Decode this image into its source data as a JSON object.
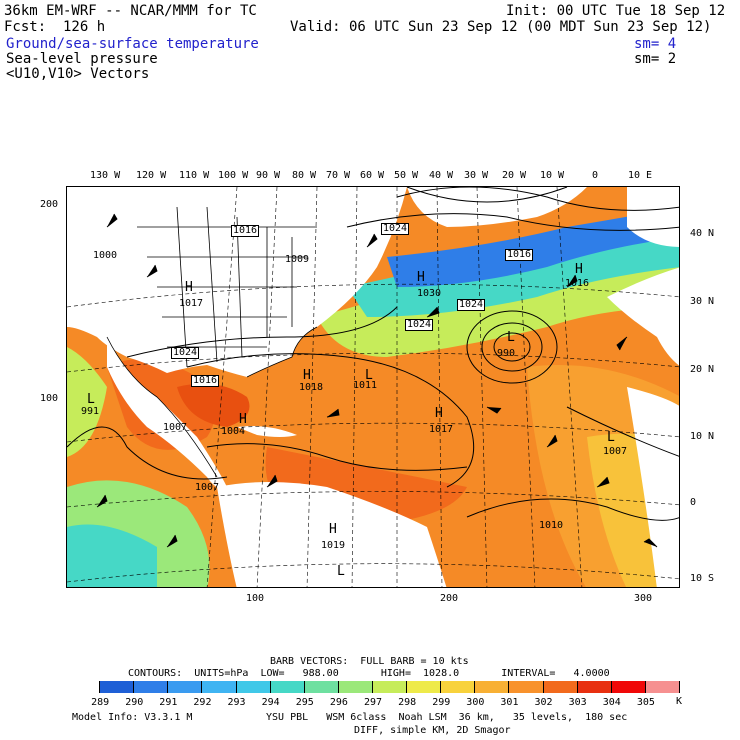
{
  "header": {
    "model": "36km EM-WRF -- NCAR/MMM for TC",
    "init": "Init: 00 UTC Tue 18 Sep 12",
    "fcst": "Fcst:  126 h",
    "valid": "Valid: 06 UTC Sun 23 Sep 12 (00 MDT Sun 23 Sep 12)",
    "field1": "Ground/sea-surface temperature",
    "field1_sm": "sm= 4",
    "field2": "Sea-level pressure",
    "field2_sm": "sm= 2",
    "field3": "<U10,V10> Vectors"
  },
  "axes": {
    "top_lon": [
      "130 W",
      "120 W",
      "110 W",
      "100 W",
      "90 W",
      "80 W",
      "70 W",
      "60 W",
      "50 W",
      "40 W",
      "30 W",
      "20 W",
      "10 W",
      "0",
      "10 E"
    ],
    "right_lat": [
      "40 N",
      "30 N",
      "20 N",
      "10 N",
      "0",
      "10 S"
    ],
    "left_grid": [
      "200",
      "100"
    ],
    "bottom_grid": [
      "100",
      "200",
      "300"
    ]
  },
  "pressure_labels": [
    {
      "text": "1016",
      "kind": "box"
    },
    {
      "text": "1024",
      "kind": "box"
    },
    {
      "text": "1009",
      "kind": "plain"
    },
    {
      "text": "1000",
      "kind": "plain"
    },
    {
      "text": "1017",
      "kind": "plain"
    },
    {
      "text": "1024",
      "kind": "box"
    },
    {
      "text": "1016",
      "kind": "box"
    },
    {
      "text": "1016",
      "kind": "box"
    },
    {
      "text": "1018",
      "kind": "plain"
    },
    {
      "text": "1011",
      "kind": "plain"
    },
    {
      "text": "990",
      "kind": "plain"
    },
    {
      "text": "1017",
      "kind": "plain"
    },
    {
      "text": "991",
      "kind": "plain"
    },
    {
      "text": "1007",
      "kind": "plain"
    },
    {
      "text": "1004",
      "kind": "plain"
    },
    {
      "text": "1007",
      "kind": "plain"
    },
    {
      "text": "1007",
      "kind": "plain"
    },
    {
      "text": "1010",
      "kind": "plain"
    },
    {
      "text": "1019",
      "kind": "plain"
    },
    {
      "text": "1024",
      "kind": "box"
    },
    {
      "text": "1024",
      "kind": "box"
    },
    {
      "text": "1030",
      "kind": "plain"
    },
    {
      "text": "1016",
      "kind": "box"
    }
  ],
  "centers": [
    "H",
    "H",
    "H",
    "H",
    "H",
    "H",
    "H",
    "L",
    "L",
    "L",
    "L",
    "L"
  ],
  "footer": {
    "barb": "BARB VECTORS:  FULL BARB = 10 kts",
    "contours": "CONTOURS:  UNITS=hPa  LOW=   988.00       HIGH=  1028.0       INTERVAL=   4.0000",
    "model_info": "Model Info: V3.3.1 M",
    "physics": "YSU PBL   WSM 6class  Noah LSM  36 km,   35 levels,  180 sec",
    "diff": "DIFF, simple KM, 2D Smagor",
    "units": "K"
  },
  "colorbar": {
    "labels": [
      "289",
      "290",
      "291",
      "292",
      "293",
      "294",
      "295",
      "296",
      "297",
      "298",
      "299",
      "300",
      "301",
      "302",
      "303",
      "304",
      "305"
    ],
    "colors": [
      "#ffffff",
      "#1e5fd6",
      "#2f7ee8",
      "#3a9bf0",
      "#3fb4f2",
      "#40c8e8",
      "#46d8c6",
      "#6ee0a0",
      "#9be87a",
      "#c6ec5a",
      "#eeea4a",
      "#f8d23c",
      "#f8b034",
      "#f8922c",
      "#f26a1c",
      "#e83010",
      "#f00808",
      "#f69090"
    ]
  }
}
